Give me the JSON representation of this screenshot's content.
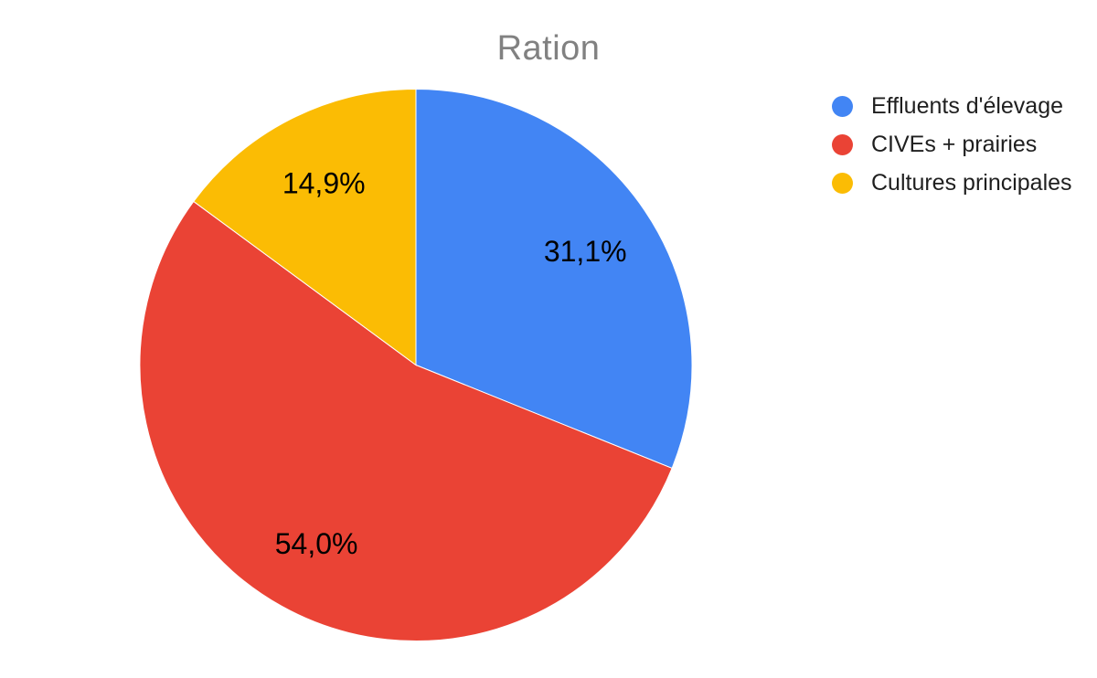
{
  "chart_data": {
    "type": "pie",
    "title": "Ration",
    "title_color": "#818181",
    "background": "#FFFFFF",
    "legend_position": "right",
    "direction": "clockwise",
    "start_angle_deg": 0,
    "slice_border_color": "#FFFFFF",
    "label_color": "#000000",
    "slices": [
      {
        "label": "Effluents d'élevage",
        "value": 31.1,
        "display": "31,1%",
        "color": "#4285F4"
      },
      {
        "label": "CIVEs + prairies",
        "value": 54.0,
        "display": "54,0%",
        "color": "#EA4335"
      },
      {
        "label": "Cultures principales",
        "value": 14.9,
        "display": "14,9%",
        "color": "#FBBC04"
      }
    ]
  }
}
